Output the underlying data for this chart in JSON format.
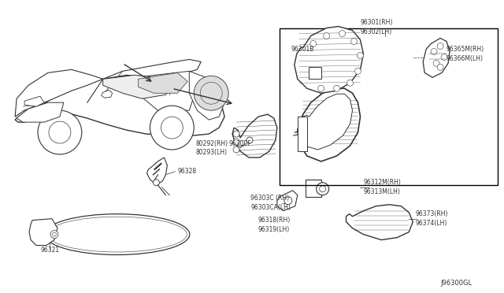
{
  "bg_color": "#ffffff",
  "line_color": "#333333",
  "text_color": "#333333",
  "font_size": 5.5,
  "diagram_code": "J96300GL",
  "labels": {
    "96301B": [
      0.51,
      0.915
    ],
    "96301_RH": "96301(RH)",
    "96302_LH": "96302(LH)",
    "96365M_RH": "96365M(RH)",
    "96366M_LH": "96366M(LH)",
    "96300F": "96300F",
    "80292_RH": "80292(RH)",
    "80293_LH": "80293(LH)",
    "96328": "96328",
    "96321": "96321",
    "96303C_RH": "96303C (RH)",
    "96303CA_LH": "96303CA(LH)",
    "96318_RH": "96318(RH)",
    "96319_LH": "96319(LH)",
    "96312M_RH": "96312M(RH)",
    "96313M_LH": "96313M(LH)",
    "96373_RH": "96373(RH)",
    "96374_LH": "96374(LH)"
  }
}
